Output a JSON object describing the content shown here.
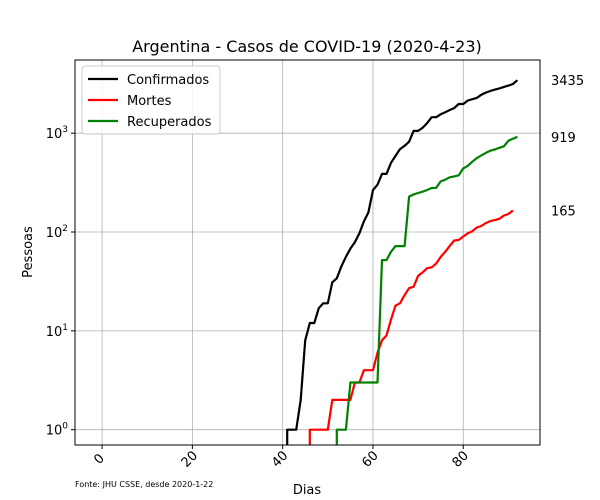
{
  "chart_data": {
    "type": "line",
    "title": "Argentina - Casos de COVID-19 (2020-4-23)",
    "xlabel": "Dias",
    "ylabel": "Pessoas",
    "yscale": "log",
    "xlim": [
      -6,
      97
    ],
    "ylim": [
      0.7,
      5500
    ],
    "xticks": [
      0,
      20,
      40,
      60,
      80
    ],
    "yticks": [
      {
        "value": 1,
        "base": "10",
        "exp": "0"
      },
      {
        "value": 10,
        "base": "10",
        "exp": "1"
      },
      {
        "value": 100,
        "base": "10",
        "exp": "2"
      },
      {
        "value": 1000,
        "base": "10",
        "exp": "3"
      }
    ],
    "grid": true,
    "legend_position": "top-left",
    "footnote": "Fonte: JHU CSSE, desde 2020-1-22",
    "series": [
      {
        "name": "Confirmados",
        "color": "#000000",
        "end_label": "3435",
        "points": [
          [
            41,
            0.7
          ],
          [
            41,
            1
          ],
          [
            43,
            1
          ],
          [
            44,
            2
          ],
          [
            45,
            8
          ],
          [
            46,
            12
          ],
          [
            47,
            12
          ],
          [
            48,
            17
          ],
          [
            49,
            19
          ],
          [
            50,
            19
          ],
          [
            51,
            31
          ],
          [
            52,
            34
          ],
          [
            53,
            45
          ],
          [
            54,
            56
          ],
          [
            55,
            68
          ],
          [
            56,
            79
          ],
          [
            57,
            97
          ],
          [
            58,
            128
          ],
          [
            59,
            158
          ],
          [
            60,
            266
          ],
          [
            61,
            301
          ],
          [
            62,
            387
          ],
          [
            63,
            387
          ],
          [
            64,
            502
          ],
          [
            65,
            589
          ],
          [
            66,
            690
          ],
          [
            67,
            745
          ],
          [
            68,
            820
          ],
          [
            69,
            1054
          ],
          [
            70,
            1054
          ],
          [
            71,
            1133
          ],
          [
            72,
            1265
          ],
          [
            73,
            1451
          ],
          [
            74,
            1451
          ],
          [
            75,
            1554
          ],
          [
            76,
            1628
          ],
          [
            77,
            1715
          ],
          [
            78,
            1795
          ],
          [
            79,
            1975
          ],
          [
            80,
            1975
          ],
          [
            81,
            2142
          ],
          [
            82,
            2208
          ],
          [
            83,
            2277
          ],
          [
            84,
            2443
          ],
          [
            85,
            2571
          ],
          [
            86,
            2669
          ],
          [
            87,
            2758
          ],
          [
            88,
            2839
          ],
          [
            89,
            2941
          ],
          [
            90,
            3031
          ],
          [
            91,
            3144
          ],
          [
            92,
            3435
          ]
        ]
      },
      {
        "name": "Mortes",
        "color": "#ff0000",
        "end_label": "165",
        "points": [
          [
            46,
            0.7
          ],
          [
            46,
            1
          ],
          [
            50,
            1
          ],
          [
            51,
            2
          ],
          [
            55,
            2
          ],
          [
            56,
            3
          ],
          [
            57,
            3
          ],
          [
            58,
            4
          ],
          [
            60,
            4
          ],
          [
            61,
            6
          ],
          [
            62,
            8
          ],
          [
            63,
            9
          ],
          [
            64,
            13
          ],
          [
            65,
            18
          ],
          [
            66,
            19
          ],
          [
            67,
            23
          ],
          [
            68,
            27
          ],
          [
            69,
            28
          ],
          [
            70,
            36
          ],
          [
            71,
            39
          ],
          [
            72,
            43
          ],
          [
            73,
            44
          ],
          [
            74,
            48
          ],
          [
            75,
            56
          ],
          [
            76,
            63
          ],
          [
            77,
            72
          ],
          [
            78,
            82
          ],
          [
            79,
            83
          ],
          [
            80,
            90
          ],
          [
            81,
            97
          ],
          [
            82,
            102
          ],
          [
            83,
            111
          ],
          [
            84,
            115
          ],
          [
            85,
            123
          ],
          [
            86,
            129
          ],
          [
            87,
            132
          ],
          [
            88,
            136
          ],
          [
            89,
            147
          ],
          [
            90,
            152
          ],
          [
            91,
            165
          ]
        ]
      },
      {
        "name": "Recuperados",
        "color": "#008000",
        "end_label": "919",
        "points": [
          [
            52,
            0.7
          ],
          [
            52,
            1
          ],
          [
            54,
            1
          ],
          [
            55,
            3
          ],
          [
            61,
            3
          ],
          [
            62,
            52
          ],
          [
            63,
            52
          ],
          [
            64,
            63
          ],
          [
            65,
            72
          ],
          [
            67,
            72
          ],
          [
            68,
            228
          ],
          [
            69,
            240
          ],
          [
            70,
            248
          ],
          [
            71,
            256
          ],
          [
            72,
            266
          ],
          [
            73,
            279
          ],
          [
            74,
            280
          ],
          [
            75,
            325
          ],
          [
            76,
            338
          ],
          [
            77,
            358
          ],
          [
            78,
            365
          ],
          [
            79,
            375
          ],
          [
            80,
            440
          ],
          [
            81,
            468
          ],
          [
            82,
            515
          ],
          [
            83,
            559
          ],
          [
            84,
            596
          ],
          [
            85,
            631
          ],
          [
            86,
            665
          ],
          [
            87,
            685
          ],
          [
            88,
            712
          ],
          [
            89,
            737
          ],
          [
            90,
            840
          ],
          [
            91,
            880
          ],
          [
            92,
            919
          ]
        ]
      }
    ]
  }
}
